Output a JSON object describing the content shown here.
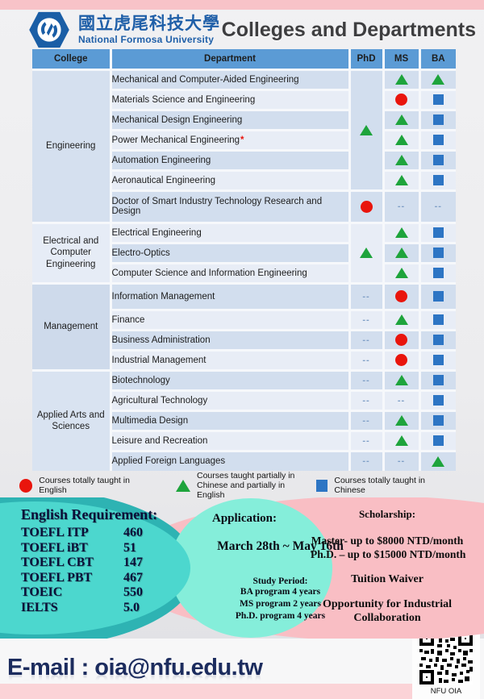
{
  "header": {
    "university_zh": "國立虎尾科技大學",
    "university_en": "National Formosa University",
    "title": "Colleges and Departments"
  },
  "colors": {
    "sym_circle": "#e9150d",
    "sym_triangle": "#1ea43c",
    "sym_square": "#2d75c4",
    "header_blue": "#5b9bd5",
    "teal": "#2eb3b3",
    "turquoise": "#4cd7ce",
    "mint": "#85eeda",
    "pink": "#f9bec4"
  },
  "table": {
    "columns": [
      "College",
      "Department",
      "PhD",
      "MS",
      "BA"
    ],
    "groups": [
      {
        "college": "Engineering",
        "phd_merged": {
          "symbol": "triangle",
          "rows": 6
        },
        "rows": [
          {
            "dept": "Mechanical and Computer-Aided Engineering",
            "ms": "triangle",
            "ba": "triangle"
          },
          {
            "dept": "Materials Science and Engineering",
            "ms": "circle",
            "ba": "square"
          },
          {
            "dept": "Mechanical Design Engineering",
            "ms": "triangle",
            "ba": "square"
          },
          {
            "dept": "Power Mechanical Engineering",
            "star": "*",
            "ms": "triangle",
            "ba": "square"
          },
          {
            "dept": "Automation Engineering",
            "ms": "triangle",
            "ba": "square"
          },
          {
            "dept": "Aeronautical Engineering",
            "ms": "triangle",
            "ba": "square"
          },
          {
            "dept": "Doctor of Smart Industry Technology Research and Design",
            "h": "tall",
            "phd": "circle",
            "ms": "--",
            "ba": "--"
          }
        ]
      },
      {
        "college": "Electrical and Computer Engineering",
        "phd_merged": {
          "symbol": "triangle",
          "rows": 3
        },
        "rows": [
          {
            "dept": "Electrical Engineering",
            "ms": "triangle",
            "ba": "square"
          },
          {
            "dept": "Electro-Optics",
            "ms": "triangle",
            "ba": "square"
          },
          {
            "dept": "Computer Science and Information Engineering",
            "ms": "triangle",
            "ba": "square"
          }
        ]
      },
      {
        "college": "Management",
        "rows": [
          {
            "dept": "Information Management",
            "h": "mid",
            "phd": "--",
            "ms": "circle",
            "ba": "square"
          },
          {
            "dept": "Finance",
            "phd": "--",
            "ms": "triangle",
            "ba": "square"
          },
          {
            "dept": "Business Administration",
            "phd": "--",
            "ms": "circle",
            "ba": "square"
          },
          {
            "dept": "Industrial Management",
            "phd": "--",
            "ms": "circle",
            "ba": "square"
          }
        ]
      },
      {
        "college": "Applied Arts and Sciences",
        "rows": [
          {
            "dept": "Biotechnology",
            "phd": "--",
            "ms": "triangle",
            "ba": "square"
          },
          {
            "dept": "Agricultural Technology",
            "phd": "--",
            "ms": "--",
            "ba": "square"
          },
          {
            "dept": "Multimedia Design",
            "phd": "--",
            "ms": "triangle",
            "ba": "square"
          },
          {
            "dept": "Leisure and Recreation",
            "phd": "--",
            "ms": "triangle",
            "ba": "square"
          },
          {
            "dept": "Applied Foreign Languages",
            "phd": "--",
            "ms": "--",
            "ba": "triangle"
          }
        ]
      }
    ]
  },
  "legend": [
    {
      "symbol": "circle",
      "label": "Courses totally taught in English"
    },
    {
      "symbol": "triangle",
      "label": "Courses taught partially in Chinese and partially in English"
    },
    {
      "symbol": "square",
      "label": "Courses totally taught in Chinese"
    }
  ],
  "info": {
    "english_requirement": {
      "title": "English Requirement:",
      "items": [
        {
          "test": "TOEFL ITP",
          "score": "460"
        },
        {
          "test": "TOEFL iBT",
          "score": "51"
        },
        {
          "test": "TOEFL CBT",
          "score": "147"
        },
        {
          "test": "TOEFL PBT",
          "score": "467"
        },
        {
          "test": "TOEIC",
          "score": "550"
        },
        {
          "test": "IELTS",
          "score": "5.0"
        }
      ]
    },
    "application": {
      "title": "Application:",
      "dates": "March 28th ~ May 16th",
      "study_period_title": "Study Period:",
      "study_period": [
        "BA program 4 years",
        "MS program 2 years",
        "Ph.D. program 4 years"
      ]
    },
    "scholarship": {
      "title": "Scholarship:",
      "lines": [
        "Master- up to $8000 NTD/month",
        "Ph.D. – up to $15000 NTD/month"
      ],
      "tuition": "Tuition Waiver",
      "opportunity": "Opportunity for Industrial Collaboration"
    }
  },
  "footer": {
    "email": "E-mail : oia@nfu.edu.tw",
    "qr_label": "NFU OIA"
  }
}
